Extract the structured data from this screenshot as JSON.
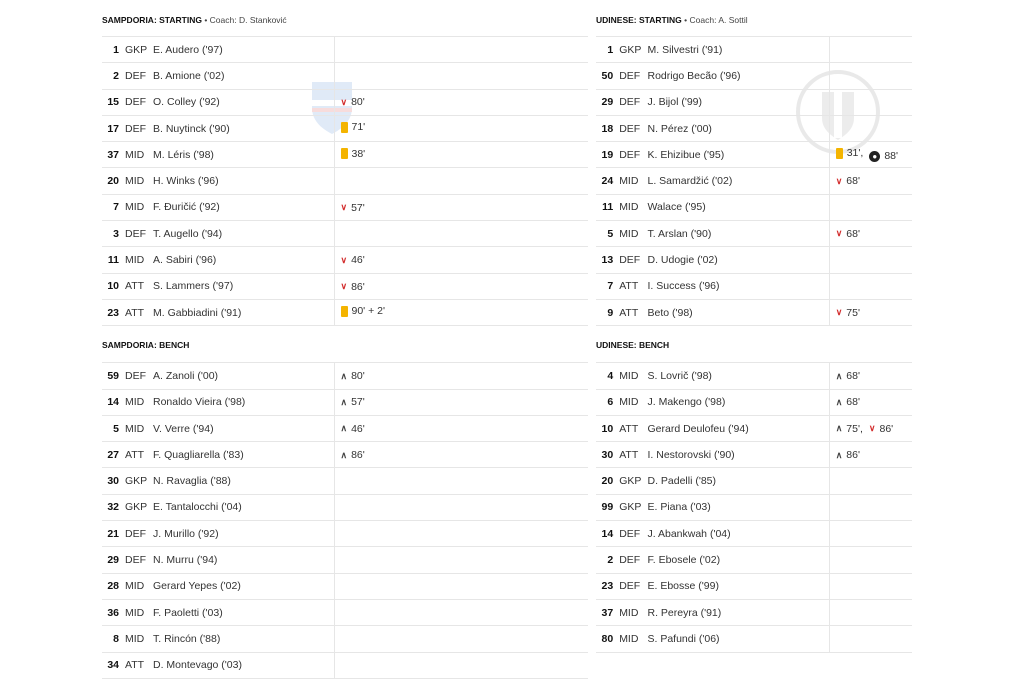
{
  "colors": {
    "yellow_card": "#f4b400",
    "sub_out": "#d32f2f",
    "sub_in": "#444444",
    "divider": "#e6e6e6"
  },
  "home": {
    "starting": {
      "team": "SAMPDORIA: STARTING",
      "coach": "Coach: D. Stanković",
      "rows": [
        {
          "num": "1",
          "pos": "GKP",
          "name": "E. Audero ('97)",
          "events": []
        },
        {
          "num": "2",
          "pos": "DEF",
          "name": "B. Amione ('02)",
          "events": []
        },
        {
          "num": "15",
          "pos": "DEF",
          "name": "O. Colley ('92)",
          "events": [
            {
              "icon": "sub-out-icon",
              "t": "80'"
            }
          ]
        },
        {
          "num": "17",
          "pos": "DEF",
          "name": "B. Nuytinck ('90)",
          "events": [
            {
              "icon": "yellow-card-icon",
              "t": "71'"
            }
          ]
        },
        {
          "num": "37",
          "pos": "MID",
          "name": "M. Léris ('98)",
          "events": [
            {
              "icon": "yellow-card-icon",
              "t": "38'"
            }
          ]
        },
        {
          "num": "20",
          "pos": "MID",
          "name": "H. Winks ('96)",
          "events": []
        },
        {
          "num": "7",
          "pos": "MID",
          "name": "F. Đuričić ('92)",
          "events": [
            {
              "icon": "sub-out-icon",
              "t": "57'"
            }
          ]
        },
        {
          "num": "3",
          "pos": "DEF",
          "name": "T. Augello ('94)",
          "events": []
        },
        {
          "num": "11",
          "pos": "MID",
          "name": "A. Sabiri ('96)",
          "events": [
            {
              "icon": "sub-out-icon",
              "t": "46'"
            }
          ]
        },
        {
          "num": "10",
          "pos": "ATT",
          "name": "S. Lammers ('97)",
          "events": [
            {
              "icon": "sub-out-icon",
              "t": "86'"
            }
          ]
        },
        {
          "num": "23",
          "pos": "ATT",
          "name": "M. Gabbiadini ('91)",
          "events": [
            {
              "icon": "yellow-card-icon",
              "t": "90' + 2'"
            }
          ]
        }
      ]
    },
    "bench": {
      "team": "SAMPDORIA: BENCH",
      "rows": [
        {
          "num": "59",
          "pos": "DEF",
          "name": "A. Zanoli ('00)",
          "events": [
            {
              "icon": "sub-in-icon",
              "t": "80'"
            }
          ]
        },
        {
          "num": "14",
          "pos": "MID",
          "name": "Ronaldo Vieira ('98)",
          "events": [
            {
              "icon": "sub-in-icon",
              "t": "57'"
            }
          ]
        },
        {
          "num": "5",
          "pos": "MID",
          "name": "V. Verre ('94)",
          "events": [
            {
              "icon": "sub-in-icon",
              "t": "46'"
            }
          ]
        },
        {
          "num": "27",
          "pos": "ATT",
          "name": "F. Quagliarella ('83)",
          "events": [
            {
              "icon": "sub-in-icon",
              "t": "86'"
            }
          ]
        },
        {
          "num": "30",
          "pos": "GKP",
          "name": "N. Ravaglia ('88)",
          "events": []
        },
        {
          "num": "32",
          "pos": "GKP",
          "name": "E. Tantalocchi ('04)",
          "events": []
        },
        {
          "num": "21",
          "pos": "DEF",
          "name": "J. Murillo ('92)",
          "events": []
        },
        {
          "num": "29",
          "pos": "DEF",
          "name": "N. Murru ('94)",
          "events": []
        },
        {
          "num": "28",
          "pos": "MID",
          "name": "Gerard Yepes ('02)",
          "events": []
        },
        {
          "num": "36",
          "pos": "MID",
          "name": "F. Paoletti ('03)",
          "events": []
        },
        {
          "num": "8",
          "pos": "MID",
          "name": "T. Rincón ('88)",
          "events": []
        },
        {
          "num": "34",
          "pos": "ATT",
          "name": "D. Montevago ('03)",
          "events": []
        }
      ]
    }
  },
  "away": {
    "starting": {
      "team": "UDINESE: STARTING",
      "coach": "Coach: A. Sottil",
      "rows": [
        {
          "num": "1",
          "pos": "GKP",
          "name": "M. Silvestri ('91)",
          "events": []
        },
        {
          "num": "50",
          "pos": "DEF",
          "name": "Rodrigo Becão ('96)",
          "events": []
        },
        {
          "num": "29",
          "pos": "DEF",
          "name": "J. Bijol ('99)",
          "events": []
        },
        {
          "num": "18",
          "pos": "DEF",
          "name": "N. Pérez ('00)",
          "events": []
        },
        {
          "num": "19",
          "pos": "DEF",
          "name": "K. Ehizibue ('95)",
          "events": [
            {
              "icon": "yellow-card-icon",
              "t": "31',"
            },
            {
              "icon": "goal-ball-icon",
              "t": "88'"
            }
          ]
        },
        {
          "num": "24",
          "pos": "MID",
          "name": "L. Samardžić ('02)",
          "events": [
            {
              "icon": "sub-out-icon",
              "t": "68'"
            }
          ]
        },
        {
          "num": "11",
          "pos": "MID",
          "name": "Walace ('95)",
          "events": []
        },
        {
          "num": "5",
          "pos": "MID",
          "name": "T. Arslan ('90)",
          "events": [
            {
              "icon": "sub-out-icon",
              "t": "68'"
            }
          ]
        },
        {
          "num": "13",
          "pos": "DEF",
          "name": "D. Udogie ('02)",
          "events": []
        },
        {
          "num": "7",
          "pos": "ATT",
          "name": "I. Success ('96)",
          "events": []
        },
        {
          "num": "9",
          "pos": "ATT",
          "name": "Beto ('98)",
          "events": [
            {
              "icon": "sub-out-icon",
              "t": "75'"
            }
          ]
        }
      ]
    },
    "bench": {
      "team": "UDINESE: BENCH",
      "rows": [
        {
          "num": "4",
          "pos": "MID",
          "name": "S. Lovrič ('98)",
          "events": [
            {
              "icon": "sub-in-icon",
              "t": "68'"
            }
          ]
        },
        {
          "num": "6",
          "pos": "MID",
          "name": "J. Makengo ('98)",
          "events": [
            {
              "icon": "sub-in-icon",
              "t": "68'"
            }
          ]
        },
        {
          "num": "10",
          "pos": "ATT",
          "name": "Gerard Deulofeu ('94)",
          "events": [
            {
              "icon": "sub-in-icon",
              "t": "75',"
            },
            {
              "icon": "sub-out-icon",
              "t": "86'"
            }
          ]
        },
        {
          "num": "30",
          "pos": "ATT",
          "name": "I. Nestorovski ('90)",
          "events": [
            {
              "icon": "sub-in-icon",
              "t": "86'"
            }
          ]
        },
        {
          "num": "20",
          "pos": "GKP",
          "name": "D. Padelli ('85)",
          "events": []
        },
        {
          "num": "99",
          "pos": "GKP",
          "name": "E. Piana ('03)",
          "events": []
        },
        {
          "num": "14",
          "pos": "DEF",
          "name": "J. Abankwah ('04)",
          "events": []
        },
        {
          "num": "2",
          "pos": "DEF",
          "name": "F. Ebosele ('02)",
          "events": []
        },
        {
          "num": "23",
          "pos": "DEF",
          "name": "E. Ebosse ('99)",
          "events": []
        },
        {
          "num": "37",
          "pos": "MID",
          "name": "R. Pereyra ('91)",
          "events": []
        },
        {
          "num": "80",
          "pos": "MID",
          "name": "S. Pafundi ('06)",
          "events": []
        }
      ]
    }
  }
}
